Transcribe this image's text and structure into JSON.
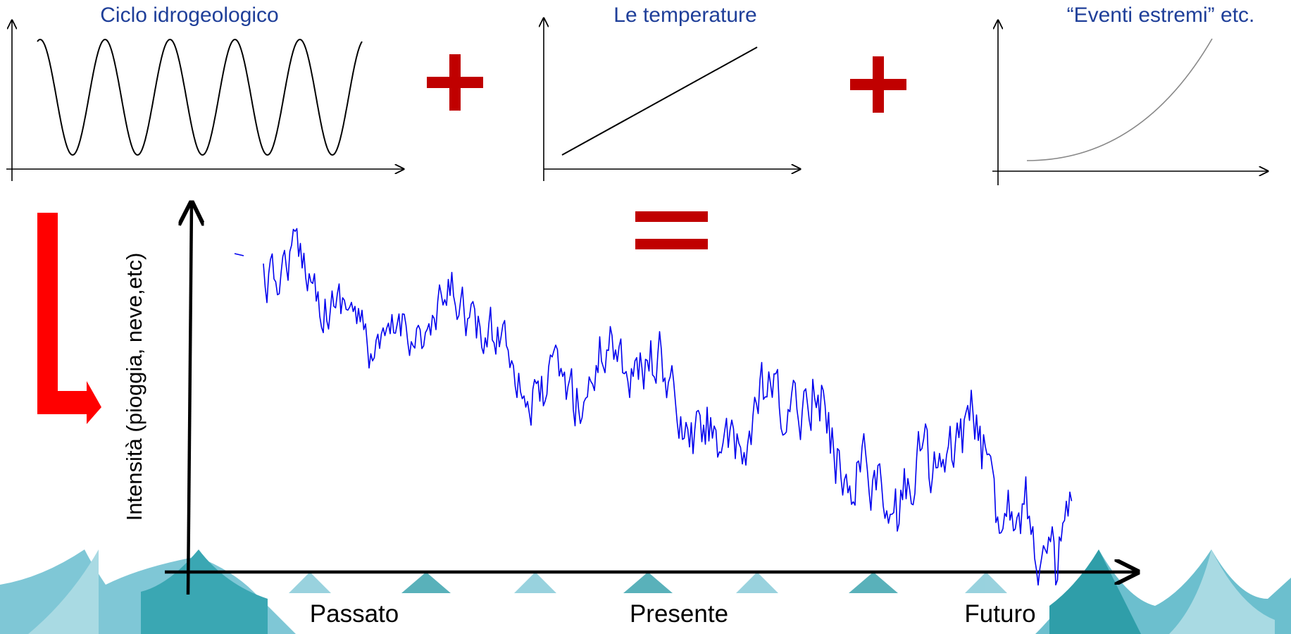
{
  "panels": [
    {
      "title": "Ciclo idrogeologico"
    },
    {
      "title": "Le temperature"
    },
    {
      "title": "“Eventi estremi” etc."
    }
  ],
  "result": {
    "y_label": "Intensità (pioggia, neve,etc)",
    "x_labels": [
      "Passato",
      "Presente",
      "Futuro"
    ]
  }
}
